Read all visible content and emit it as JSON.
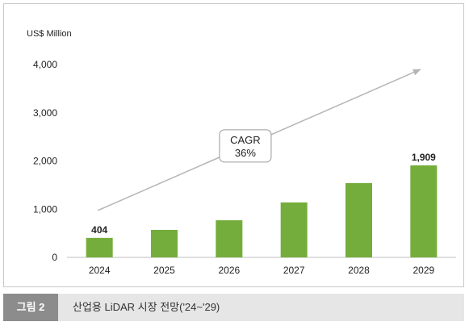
{
  "chart_data": {
    "type": "bar",
    "unit_label": "US$ Million",
    "categories": [
      "2024",
      "2025",
      "2026",
      "2027",
      "2028",
      "2029"
    ],
    "values": [
      404,
      570,
      770,
      1140,
      1540,
      1909
    ],
    "data_labels": [
      {
        "category": "2024",
        "text": "404"
      },
      {
        "category": "2029",
        "text": "1,909"
      }
    ],
    "yticks": [
      "0",
      "1,000",
      "2,000",
      "3,000",
      "4,000"
    ],
    "ylim": [
      0,
      4000
    ],
    "annotation": {
      "line1": "CAGR",
      "line2": "36%"
    },
    "grid": false,
    "legend": "none",
    "bar_color": "#74ad3b",
    "arrow_color": "#b5b5b5"
  },
  "caption": {
    "label": "그림 2",
    "text": "산업용 LiDAR 시장 전망('24~'29)",
    "label_bg": "#8c8c8c",
    "bar_bg": "#e6e6e6"
  }
}
